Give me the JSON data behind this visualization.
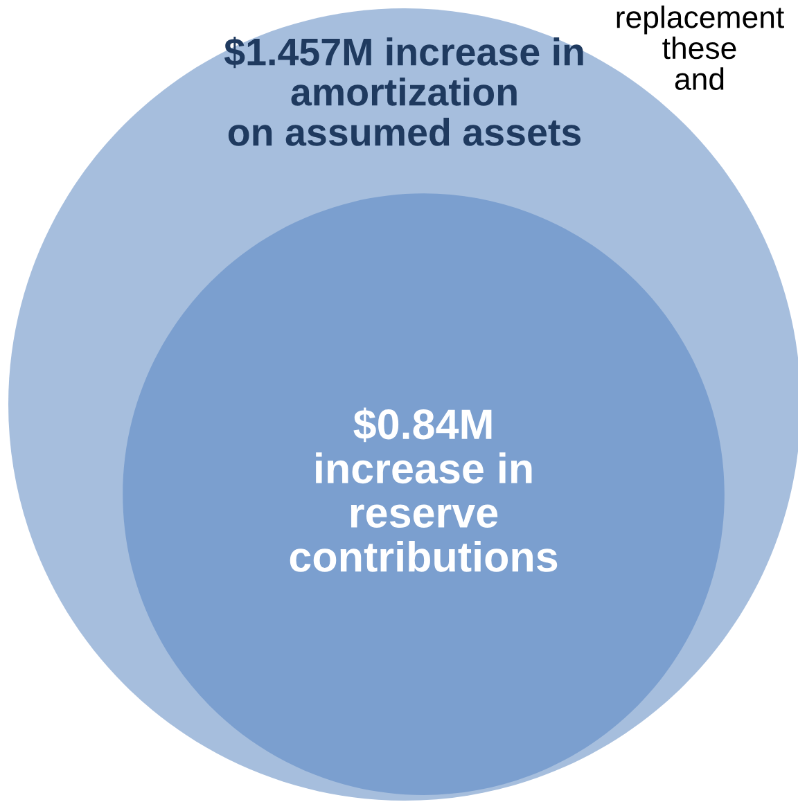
{
  "chart_data": {
    "type": "other",
    "categories": [
      "increase in\namortization\non assumed assets",
      "increase in\nreserve\ncontributions"
    ],
    "values": [
      1.457,
      0.84
    ],
    "value_labels": [
      "$1.457M",
      "$0.84M"
    ],
    "colors": [
      "#a6bedd",
      "#7b9fcf"
    ],
    "annotations": [
      "replacement\nthese\nand"
    ]
  }
}
